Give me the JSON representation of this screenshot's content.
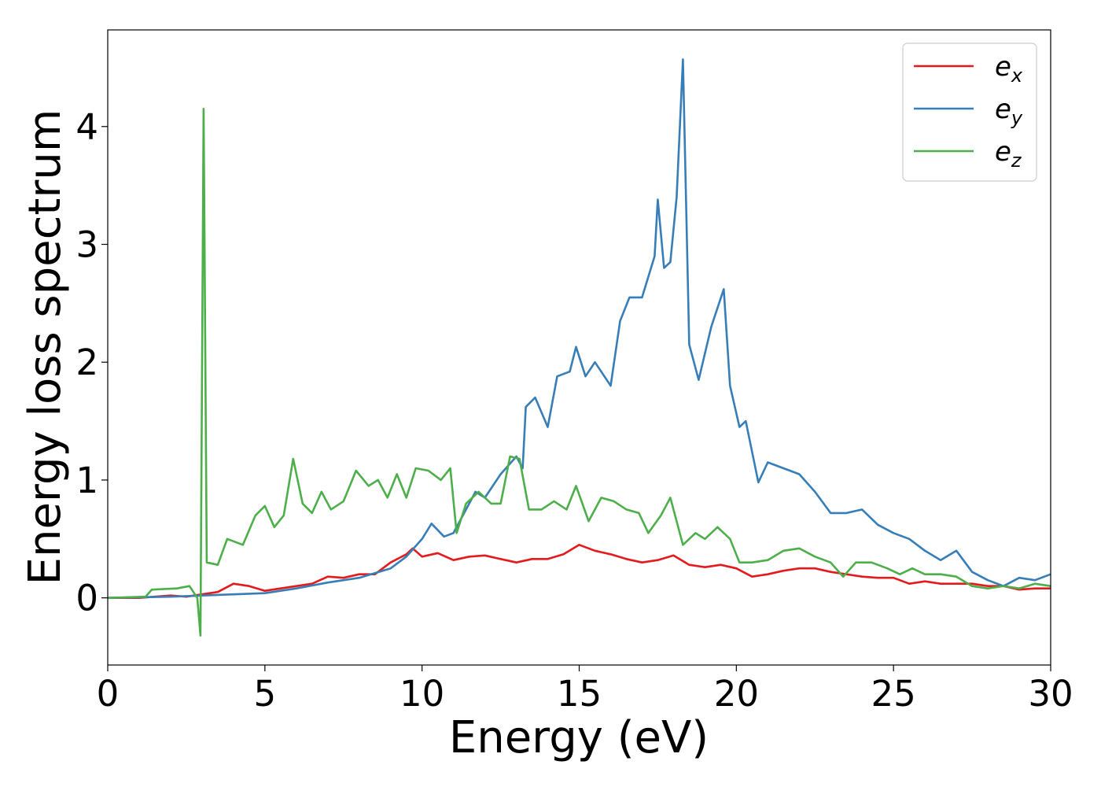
{
  "chart_data": {
    "type": "line",
    "title": "",
    "xlabel": "Energy (eV)",
    "ylabel": "Energy loss spectrum",
    "xlim": [
      0,
      30
    ],
    "ylim": [
      -0.57,
      4.82
    ],
    "xticks": [
      0,
      5,
      10,
      15,
      20,
      25,
      30
    ],
    "xtick_labels": [
      "0",
      "5",
      "10",
      "15",
      "20",
      "25",
      "30"
    ],
    "yticks": [
      0,
      1,
      2,
      3,
      4
    ],
    "ytick_labels": [
      "0",
      "1",
      "2",
      "3",
      "4"
    ],
    "grid": false,
    "legend_position": "top-right",
    "series": [
      {
        "name": "e_x",
        "label_base": "e",
        "label_sub": "x",
        "color": "#e41a1c",
        "points": [
          [
            0,
            0
          ],
          [
            1,
            0.0
          ],
          [
            1.5,
            0.01
          ],
          [
            2,
            0.02
          ],
          [
            2.5,
            0.01
          ],
          [
            3,
            0.03
          ],
          [
            3.5,
            0.05
          ],
          [
            4,
            0.12
          ],
          [
            4.5,
            0.1
          ],
          [
            5,
            0.06
          ],
          [
            5.5,
            0.08
          ],
          [
            6,
            0.1
          ],
          [
            6.5,
            0.12
          ],
          [
            7,
            0.18
          ],
          [
            7.5,
            0.17
          ],
          [
            8,
            0.2
          ],
          [
            8.5,
            0.2
          ],
          [
            9,
            0.3
          ],
          [
            9.5,
            0.37
          ],
          [
            9.7,
            0.42
          ],
          [
            10,
            0.35
          ],
          [
            10.5,
            0.38
          ],
          [
            11,
            0.32
          ],
          [
            11.5,
            0.35
          ],
          [
            12,
            0.36
          ],
          [
            12.5,
            0.33
          ],
          [
            13,
            0.3
          ],
          [
            13.5,
            0.33
          ],
          [
            14,
            0.33
          ],
          [
            14.5,
            0.37
          ],
          [
            15,
            0.45
          ],
          [
            15.5,
            0.4
          ],
          [
            16,
            0.37
          ],
          [
            16.5,
            0.33
          ],
          [
            17,
            0.3
          ],
          [
            17.5,
            0.32
          ],
          [
            18,
            0.36
          ],
          [
            18.5,
            0.28
          ],
          [
            19,
            0.26
          ],
          [
            19.5,
            0.28
          ],
          [
            20,
            0.25
          ],
          [
            20.5,
            0.18
          ],
          [
            21,
            0.2
          ],
          [
            21.5,
            0.23
          ],
          [
            22,
            0.25
          ],
          [
            22.5,
            0.25
          ],
          [
            23,
            0.22
          ],
          [
            23.5,
            0.2
          ],
          [
            24,
            0.18
          ],
          [
            24.5,
            0.17
          ],
          [
            25,
            0.17
          ],
          [
            25.5,
            0.12
          ],
          [
            26,
            0.14
          ],
          [
            26.5,
            0.12
          ],
          [
            27,
            0.12
          ],
          [
            27.5,
            0.12
          ],
          [
            28,
            0.1
          ],
          [
            28.5,
            0.1
          ],
          [
            29,
            0.07
          ],
          [
            29.5,
            0.08
          ],
          [
            30,
            0.08
          ]
        ]
      },
      {
        "name": "e_y",
        "label_base": "e",
        "label_sub": "y",
        "color": "#377eb8",
        "points": [
          [
            0,
            0
          ],
          [
            2,
            0.01
          ],
          [
            3,
            0.02
          ],
          [
            4,
            0.03
          ],
          [
            5,
            0.04
          ],
          [
            6,
            0.08
          ],
          [
            7,
            0.13
          ],
          [
            8,
            0.17
          ],
          [
            9,
            0.25
          ],
          [
            9.5,
            0.35
          ],
          [
            10,
            0.5
          ],
          [
            10.3,
            0.63
          ],
          [
            10.7,
            0.52
          ],
          [
            11,
            0.55
          ],
          [
            11.5,
            0.8
          ],
          [
            11.7,
            0.9
          ],
          [
            12,
            0.85
          ],
          [
            12.5,
            1.05
          ],
          [
            13,
            1.2
          ],
          [
            13.2,
            1.1
          ],
          [
            13.3,
            1.62
          ],
          [
            13.6,
            1.7
          ],
          [
            14,
            1.45
          ],
          [
            14.3,
            1.88
          ],
          [
            14.7,
            1.92
          ],
          [
            14.9,
            2.13
          ],
          [
            15.2,
            1.88
          ],
          [
            15.5,
            2.0
          ],
          [
            16,
            1.8
          ],
          [
            16.3,
            2.35
          ],
          [
            16.6,
            2.55
          ],
          [
            17,
            2.55
          ],
          [
            17.4,
            2.9
          ],
          [
            17.5,
            3.38
          ],
          [
            17.7,
            2.8
          ],
          [
            17.9,
            2.85
          ],
          [
            18.1,
            3.4
          ],
          [
            18.3,
            4.57
          ],
          [
            18.5,
            2.15
          ],
          [
            18.8,
            1.85
          ],
          [
            19.2,
            2.3
          ],
          [
            19.6,
            2.62
          ],
          [
            19.8,
            1.8
          ],
          [
            20.1,
            1.45
          ],
          [
            20.3,
            1.5
          ],
          [
            20.7,
            0.98
          ],
          [
            21,
            1.15
          ],
          [
            21.5,
            1.1
          ],
          [
            22,
            1.05
          ],
          [
            22.5,
            0.9
          ],
          [
            23,
            0.72
          ],
          [
            23.5,
            0.72
          ],
          [
            24,
            0.75
          ],
          [
            24.5,
            0.62
          ],
          [
            25,
            0.55
          ],
          [
            25.5,
            0.5
          ],
          [
            26,
            0.4
          ],
          [
            26.5,
            0.32
          ],
          [
            27,
            0.4
          ],
          [
            27.5,
            0.22
          ],
          [
            28,
            0.15
          ],
          [
            28.5,
            0.1
          ],
          [
            29,
            0.17
          ],
          [
            29.5,
            0.15
          ],
          [
            30,
            0.2
          ]
        ]
      },
      {
        "name": "e_z",
        "label_base": "e",
        "label_sub": "z",
        "color": "#4daf4a",
        "points": [
          [
            0,
            0
          ],
          [
            1.2,
            0.01
          ],
          [
            1.4,
            0.07
          ],
          [
            2.2,
            0.08
          ],
          [
            2.6,
            0.1
          ],
          [
            2.85,
            0.0
          ],
          [
            2.95,
            -0.32
          ],
          [
            3.05,
            4.15
          ],
          [
            3.15,
            0.3
          ],
          [
            3.5,
            0.28
          ],
          [
            3.8,
            0.5
          ],
          [
            4.3,
            0.45
          ],
          [
            4.7,
            0.7
          ],
          [
            5,
            0.78
          ],
          [
            5.3,
            0.6
          ],
          [
            5.6,
            0.7
          ],
          [
            5.9,
            1.18
          ],
          [
            6.2,
            0.8
          ],
          [
            6.5,
            0.72
          ],
          [
            6.8,
            0.9
          ],
          [
            7.1,
            0.75
          ],
          [
            7.5,
            0.82
          ],
          [
            7.9,
            1.08
          ],
          [
            8.3,
            0.95
          ],
          [
            8.6,
            1.0
          ],
          [
            8.9,
            0.85
          ],
          [
            9.2,
            1.05
          ],
          [
            9.5,
            0.85
          ],
          [
            9.8,
            1.1
          ],
          [
            10.2,
            1.08
          ],
          [
            10.6,
            1.0
          ],
          [
            10.9,
            1.1
          ],
          [
            11.1,
            0.55
          ],
          [
            11.4,
            0.8
          ],
          [
            11.8,
            0.9
          ],
          [
            12.2,
            0.8
          ],
          [
            12.5,
            0.8
          ],
          [
            12.8,
            1.2
          ],
          [
            13.1,
            1.18
          ],
          [
            13.4,
            0.75
          ],
          [
            13.8,
            0.75
          ],
          [
            14.2,
            0.82
          ],
          [
            14.6,
            0.75
          ],
          [
            14.9,
            0.95
          ],
          [
            15.3,
            0.65
          ],
          [
            15.7,
            0.85
          ],
          [
            16.1,
            0.82
          ],
          [
            16.5,
            0.75
          ],
          [
            16.9,
            0.72
          ],
          [
            17.2,
            0.55
          ],
          [
            17.6,
            0.7
          ],
          [
            17.9,
            0.85
          ],
          [
            18.3,
            0.45
          ],
          [
            18.7,
            0.55
          ],
          [
            19,
            0.5
          ],
          [
            19.4,
            0.6
          ],
          [
            19.8,
            0.5
          ],
          [
            20.1,
            0.3
          ],
          [
            20.5,
            0.3
          ],
          [
            21,
            0.32
          ],
          [
            21.5,
            0.4
          ],
          [
            22,
            0.42
          ],
          [
            22.5,
            0.35
          ],
          [
            23,
            0.3
          ],
          [
            23.4,
            0.18
          ],
          [
            23.8,
            0.3
          ],
          [
            24.3,
            0.3
          ],
          [
            24.8,
            0.25
          ],
          [
            25.2,
            0.2
          ],
          [
            25.6,
            0.25
          ],
          [
            26,
            0.2
          ],
          [
            26.5,
            0.2
          ],
          [
            27,
            0.18
          ],
          [
            27.5,
            0.1
          ],
          [
            28,
            0.08
          ],
          [
            28.5,
            0.1
          ],
          [
            29,
            0.08
          ],
          [
            29.5,
            0.12
          ],
          [
            30,
            0.1
          ]
        ]
      }
    ]
  }
}
